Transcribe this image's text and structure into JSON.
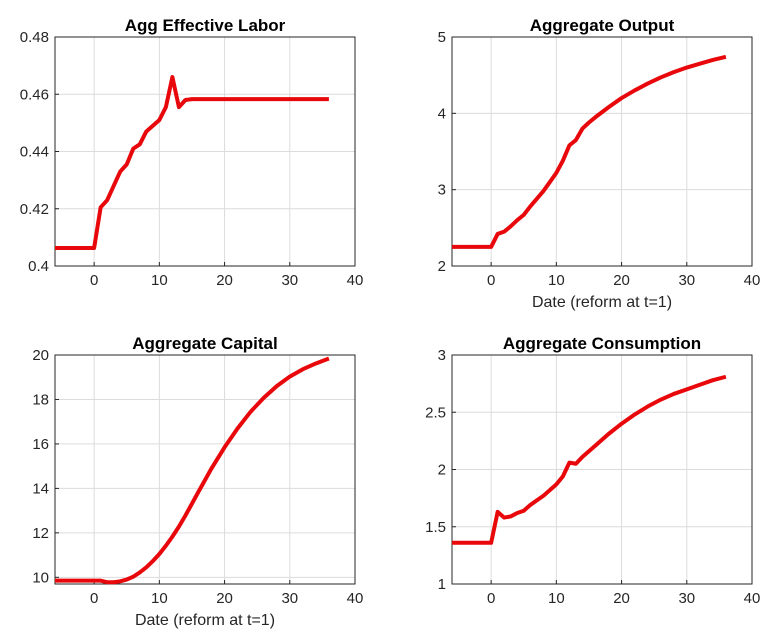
{
  "chart_data": [
    {
      "type": "line",
      "title": "Agg Effective Labor",
      "xlabel": "",
      "xlim": [
        -6,
        40
      ],
      "ylim": [
        0.4,
        0.48
      ],
      "xticks": [
        0,
        10,
        20,
        30,
        40
      ],
      "yticks": [
        0.4,
        0.42,
        0.44,
        0.46,
        0.48
      ],
      "ytick_labels": [
        "0.4",
        "0.42",
        "0.44",
        "0.46",
        "0.48"
      ],
      "grid": true,
      "line_color": "#e8070a",
      "series": [
        {
          "x": [
            -6,
            -5,
            -4,
            -3,
            -2,
            -1,
            0,
            1,
            2,
            3,
            4,
            5,
            6,
            7,
            8,
            9,
            10,
            11,
            12,
            13,
            14,
            15,
            16,
            18,
            20,
            25,
            30,
            36
          ],
          "y": [
            0.4063,
            0.4063,
            0.4063,
            0.4063,
            0.4063,
            0.4063,
            0.4063,
            0.4205,
            0.423,
            0.428,
            0.433,
            0.4355,
            0.441,
            0.4425,
            0.447,
            0.449,
            0.451,
            0.4555,
            0.466,
            0.4555,
            0.458,
            0.4583,
            0.4583,
            0.4583,
            0.4583,
            0.4583,
            0.4583,
            0.4583
          ]
        }
      ]
    },
    {
      "type": "line",
      "title": "Aggregate Output",
      "xlabel": "Date (reform at t=1)",
      "xlim": [
        -6,
        40
      ],
      "ylim": [
        2,
        5
      ],
      "xticks": [
        0,
        10,
        20,
        30,
        40
      ],
      "yticks": [
        2,
        3,
        4,
        5
      ],
      "ytick_labels": [
        "2",
        "3",
        "4",
        "5"
      ],
      "grid": true,
      "line_color": "#e8070a",
      "series": [
        {
          "x": [
            -6,
            -3,
            0,
            1,
            2,
            3,
            4,
            5,
            6,
            7,
            8,
            9,
            10,
            11,
            12,
            13,
            14,
            15,
            16,
            18,
            20,
            22,
            24,
            26,
            28,
            30,
            32,
            34,
            36
          ],
          "y": [
            2.25,
            2.25,
            2.25,
            2.42,
            2.45,
            2.52,
            2.6,
            2.67,
            2.78,
            2.88,
            2.98,
            3.1,
            3.22,
            3.38,
            3.58,
            3.65,
            3.8,
            3.88,
            3.95,
            4.08,
            4.2,
            4.3,
            4.39,
            4.47,
            4.54,
            4.6,
            4.65,
            4.7,
            4.74
          ]
        }
      ]
    },
    {
      "type": "line",
      "title": "Aggregate Capital",
      "xlabel": "Date (reform at t=1)",
      "xlim": [
        -6,
        40
      ],
      "ylim": [
        9.7,
        20
      ],
      "xticks": [
        0,
        10,
        20,
        30,
        40
      ],
      "yticks": [
        10,
        12,
        14,
        16,
        18,
        20
      ],
      "ytick_labels": [
        "10",
        "12",
        "14",
        "16",
        "18",
        "20"
      ],
      "grid": true,
      "line_color": "#e8070a",
      "series": [
        {
          "x": [
            -6,
            -3,
            0,
            1,
            2,
            3,
            4,
            5,
            6,
            7,
            8,
            9,
            10,
            11,
            12,
            13,
            14,
            16,
            18,
            20,
            22,
            24,
            26,
            28,
            30,
            32,
            34,
            36
          ],
          "y": [
            9.85,
            9.85,
            9.85,
            9.85,
            9.78,
            9.78,
            9.82,
            9.9,
            10.03,
            10.22,
            10.45,
            10.73,
            11.05,
            11.42,
            11.83,
            12.28,
            12.78,
            13.85,
            14.9,
            15.85,
            16.7,
            17.45,
            18.07,
            18.6,
            19.03,
            19.36,
            19.62,
            19.84
          ]
        }
      ]
    },
    {
      "type": "line",
      "title": "Aggregate Consumption",
      "xlabel": "",
      "xlim": [
        -6,
        40
      ],
      "ylim": [
        1,
        3
      ],
      "xticks": [
        0,
        10,
        20,
        30,
        40
      ],
      "yticks": [
        1,
        1.5,
        2,
        2.5,
        3
      ],
      "ytick_labels": [
        "1",
        "1.5",
        "2",
        "2.5",
        "3"
      ],
      "grid": true,
      "line_color": "#e8070a",
      "series": [
        {
          "x": [
            -6,
            -3,
            0,
            1,
            2,
            3,
            4,
            5,
            6,
            7,
            8,
            9,
            10,
            11,
            12,
            13,
            14,
            16,
            18,
            20,
            22,
            24,
            26,
            28,
            30,
            32,
            34,
            36
          ],
          "y": [
            1.36,
            1.36,
            1.36,
            1.63,
            1.58,
            1.59,
            1.62,
            1.64,
            1.69,
            1.73,
            1.77,
            1.82,
            1.87,
            1.94,
            2.06,
            2.05,
            2.11,
            2.21,
            2.31,
            2.4,
            2.48,
            2.55,
            2.61,
            2.66,
            2.7,
            2.74,
            2.78,
            2.81
          ]
        }
      ]
    }
  ]
}
